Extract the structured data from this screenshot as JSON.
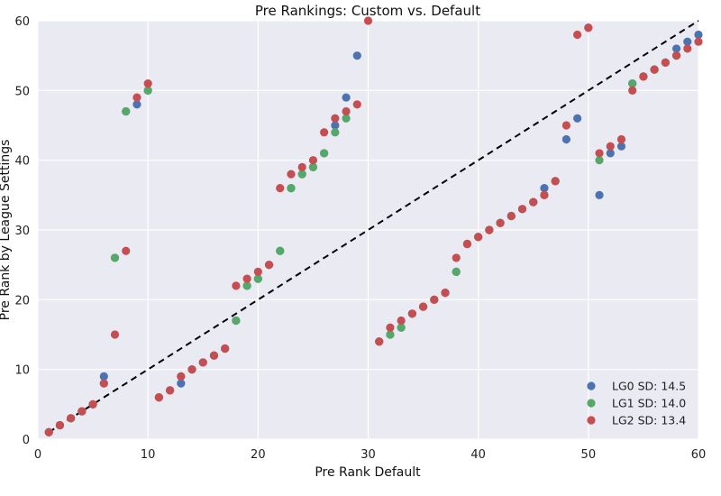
{
  "chart_data": {
    "type": "scatter",
    "title": "Pre Rankings: Custom vs. Default",
    "xlabel": "Pre Rank Default",
    "ylabel": "Pre Rank by League Settings",
    "xlim": [
      0,
      60
    ],
    "ylim": [
      0,
      60
    ],
    "xticks": [
      "0",
      "10",
      "20",
      "30",
      "40",
      "50",
      "60"
    ],
    "yticks": [
      "0",
      "10",
      "20",
      "30",
      "40",
      "50",
      "60"
    ],
    "grid": true,
    "legend_position": "lower-right",
    "reference_line": {
      "style": "dashed",
      "color": "#000000",
      "from": [
        1,
        1
      ],
      "to": [
        60,
        60
      ]
    },
    "series": [
      {
        "name": "LG0 SD: 14.5",
        "color": "#4c72b0",
        "points": [
          [
            1,
            1
          ],
          [
            2,
            2
          ],
          [
            3,
            3
          ],
          [
            4,
            4
          ],
          [
            5,
            5
          ],
          [
            6,
            9
          ],
          [
            7,
            26
          ],
          [
            8,
            47
          ],
          [
            9,
            48
          ],
          [
            10,
            50
          ],
          [
            11,
            6
          ],
          [
            12,
            7
          ],
          [
            13,
            8
          ],
          [
            14,
            10
          ],
          [
            15,
            11
          ],
          [
            16,
            12
          ],
          [
            17,
            13
          ],
          [
            18,
            17
          ],
          [
            19,
            22
          ],
          [
            20,
            23
          ],
          [
            21,
            25
          ],
          [
            22,
            27
          ],
          [
            23,
            36
          ],
          [
            24,
            38
          ],
          [
            25,
            39
          ],
          [
            26,
            41
          ],
          [
            27,
            45
          ],
          [
            28,
            49
          ],
          [
            29,
            55
          ],
          [
            31,
            14
          ],
          [
            32,
            15
          ],
          [
            33,
            16
          ],
          [
            34,
            18
          ],
          [
            35,
            19
          ],
          [
            36,
            20
          ],
          [
            37,
            21
          ],
          [
            38,
            24
          ],
          [
            39,
            28
          ],
          [
            40,
            29
          ],
          [
            41,
            30
          ],
          [
            42,
            31
          ],
          [
            43,
            32
          ],
          [
            44,
            33
          ],
          [
            45,
            34
          ],
          [
            46,
            36
          ],
          [
            47,
            37
          ],
          [
            48,
            43
          ],
          [
            49,
            46
          ],
          [
            50,
            59
          ],
          [
            51,
            35
          ],
          [
            52,
            41
          ],
          [
            53,
            42
          ],
          [
            54,
            51
          ],
          [
            55,
            52
          ],
          [
            56,
            53
          ],
          [
            57,
            54
          ],
          [
            58,
            56
          ],
          [
            59,
            57
          ],
          [
            60,
            58
          ]
        ]
      },
      {
        "name": "LG1 SD: 14.0",
        "color": "#55a868",
        "points": [
          [
            1,
            1
          ],
          [
            2,
            2
          ],
          [
            3,
            3
          ],
          [
            4,
            4
          ],
          [
            5,
            5
          ],
          [
            6,
            8
          ],
          [
            7,
            26
          ],
          [
            8,
            47
          ],
          [
            10,
            50
          ],
          [
            11,
            6
          ],
          [
            12,
            7
          ],
          [
            13,
            9
          ],
          [
            14,
            10
          ],
          [
            15,
            11
          ],
          [
            16,
            12
          ],
          [
            17,
            13
          ],
          [
            18,
            17
          ],
          [
            19,
            22
          ],
          [
            20,
            23
          ],
          [
            21,
            25
          ],
          [
            22,
            27
          ],
          [
            23,
            36
          ],
          [
            24,
            38
          ],
          [
            25,
            39
          ],
          [
            26,
            41
          ],
          [
            27,
            44
          ],
          [
            28,
            46
          ],
          [
            31,
            14
          ],
          [
            32,
            15
          ],
          [
            33,
            16
          ],
          [
            34,
            18
          ],
          [
            35,
            19
          ],
          [
            36,
            20
          ],
          [
            37,
            21
          ],
          [
            38,
            24
          ],
          [
            39,
            28
          ],
          [
            40,
            29
          ],
          [
            41,
            30
          ],
          [
            42,
            31
          ],
          [
            43,
            32
          ],
          [
            44,
            33
          ],
          [
            45,
            34
          ],
          [
            46,
            35
          ],
          [
            47,
            37
          ],
          [
            51,
            40
          ],
          [
            54,
            51
          ],
          [
            55,
            52
          ],
          [
            56,
            53
          ],
          [
            57,
            54
          ],
          [
            58,
            55
          ]
        ]
      },
      {
        "name": "LG2 SD: 13.4",
        "color": "#c44e52",
        "points": [
          [
            1,
            1
          ],
          [
            2,
            2
          ],
          [
            3,
            3
          ],
          [
            4,
            4
          ],
          [
            5,
            5
          ],
          [
            6,
            8
          ],
          [
            7,
            15
          ],
          [
            8,
            27
          ],
          [
            9,
            49
          ],
          [
            10,
            51
          ],
          [
            11,
            6
          ],
          [
            12,
            7
          ],
          [
            13,
            9
          ],
          [
            14,
            10
          ],
          [
            15,
            11
          ],
          [
            16,
            12
          ],
          [
            17,
            13
          ],
          [
            18,
            22
          ],
          [
            19,
            23
          ],
          [
            20,
            24
          ],
          [
            21,
            25
          ],
          [
            22,
            36
          ],
          [
            23,
            38
          ],
          [
            24,
            39
          ],
          [
            25,
            40
          ],
          [
            26,
            44
          ],
          [
            27,
            46
          ],
          [
            28,
            47
          ],
          [
            29,
            48
          ],
          [
            30,
            60
          ],
          [
            31,
            14
          ],
          [
            32,
            16
          ],
          [
            33,
            17
          ],
          [
            34,
            18
          ],
          [
            35,
            19
          ],
          [
            36,
            20
          ],
          [
            37,
            21
          ],
          [
            38,
            26
          ],
          [
            39,
            28
          ],
          [
            40,
            29
          ],
          [
            41,
            30
          ],
          [
            42,
            31
          ],
          [
            43,
            32
          ],
          [
            44,
            33
          ],
          [
            45,
            34
          ],
          [
            46,
            35
          ],
          [
            47,
            37
          ],
          [
            48,
            45
          ],
          [
            49,
            58
          ],
          [
            50,
            59
          ],
          [
            51,
            41
          ],
          [
            52,
            42
          ],
          [
            53,
            43
          ],
          [
            54,
            50
          ],
          [
            55,
            52
          ],
          [
            56,
            53
          ],
          [
            57,
            54
          ],
          [
            58,
            55
          ],
          [
            59,
            56
          ],
          [
            60,
            57
          ]
        ]
      }
    ]
  }
}
